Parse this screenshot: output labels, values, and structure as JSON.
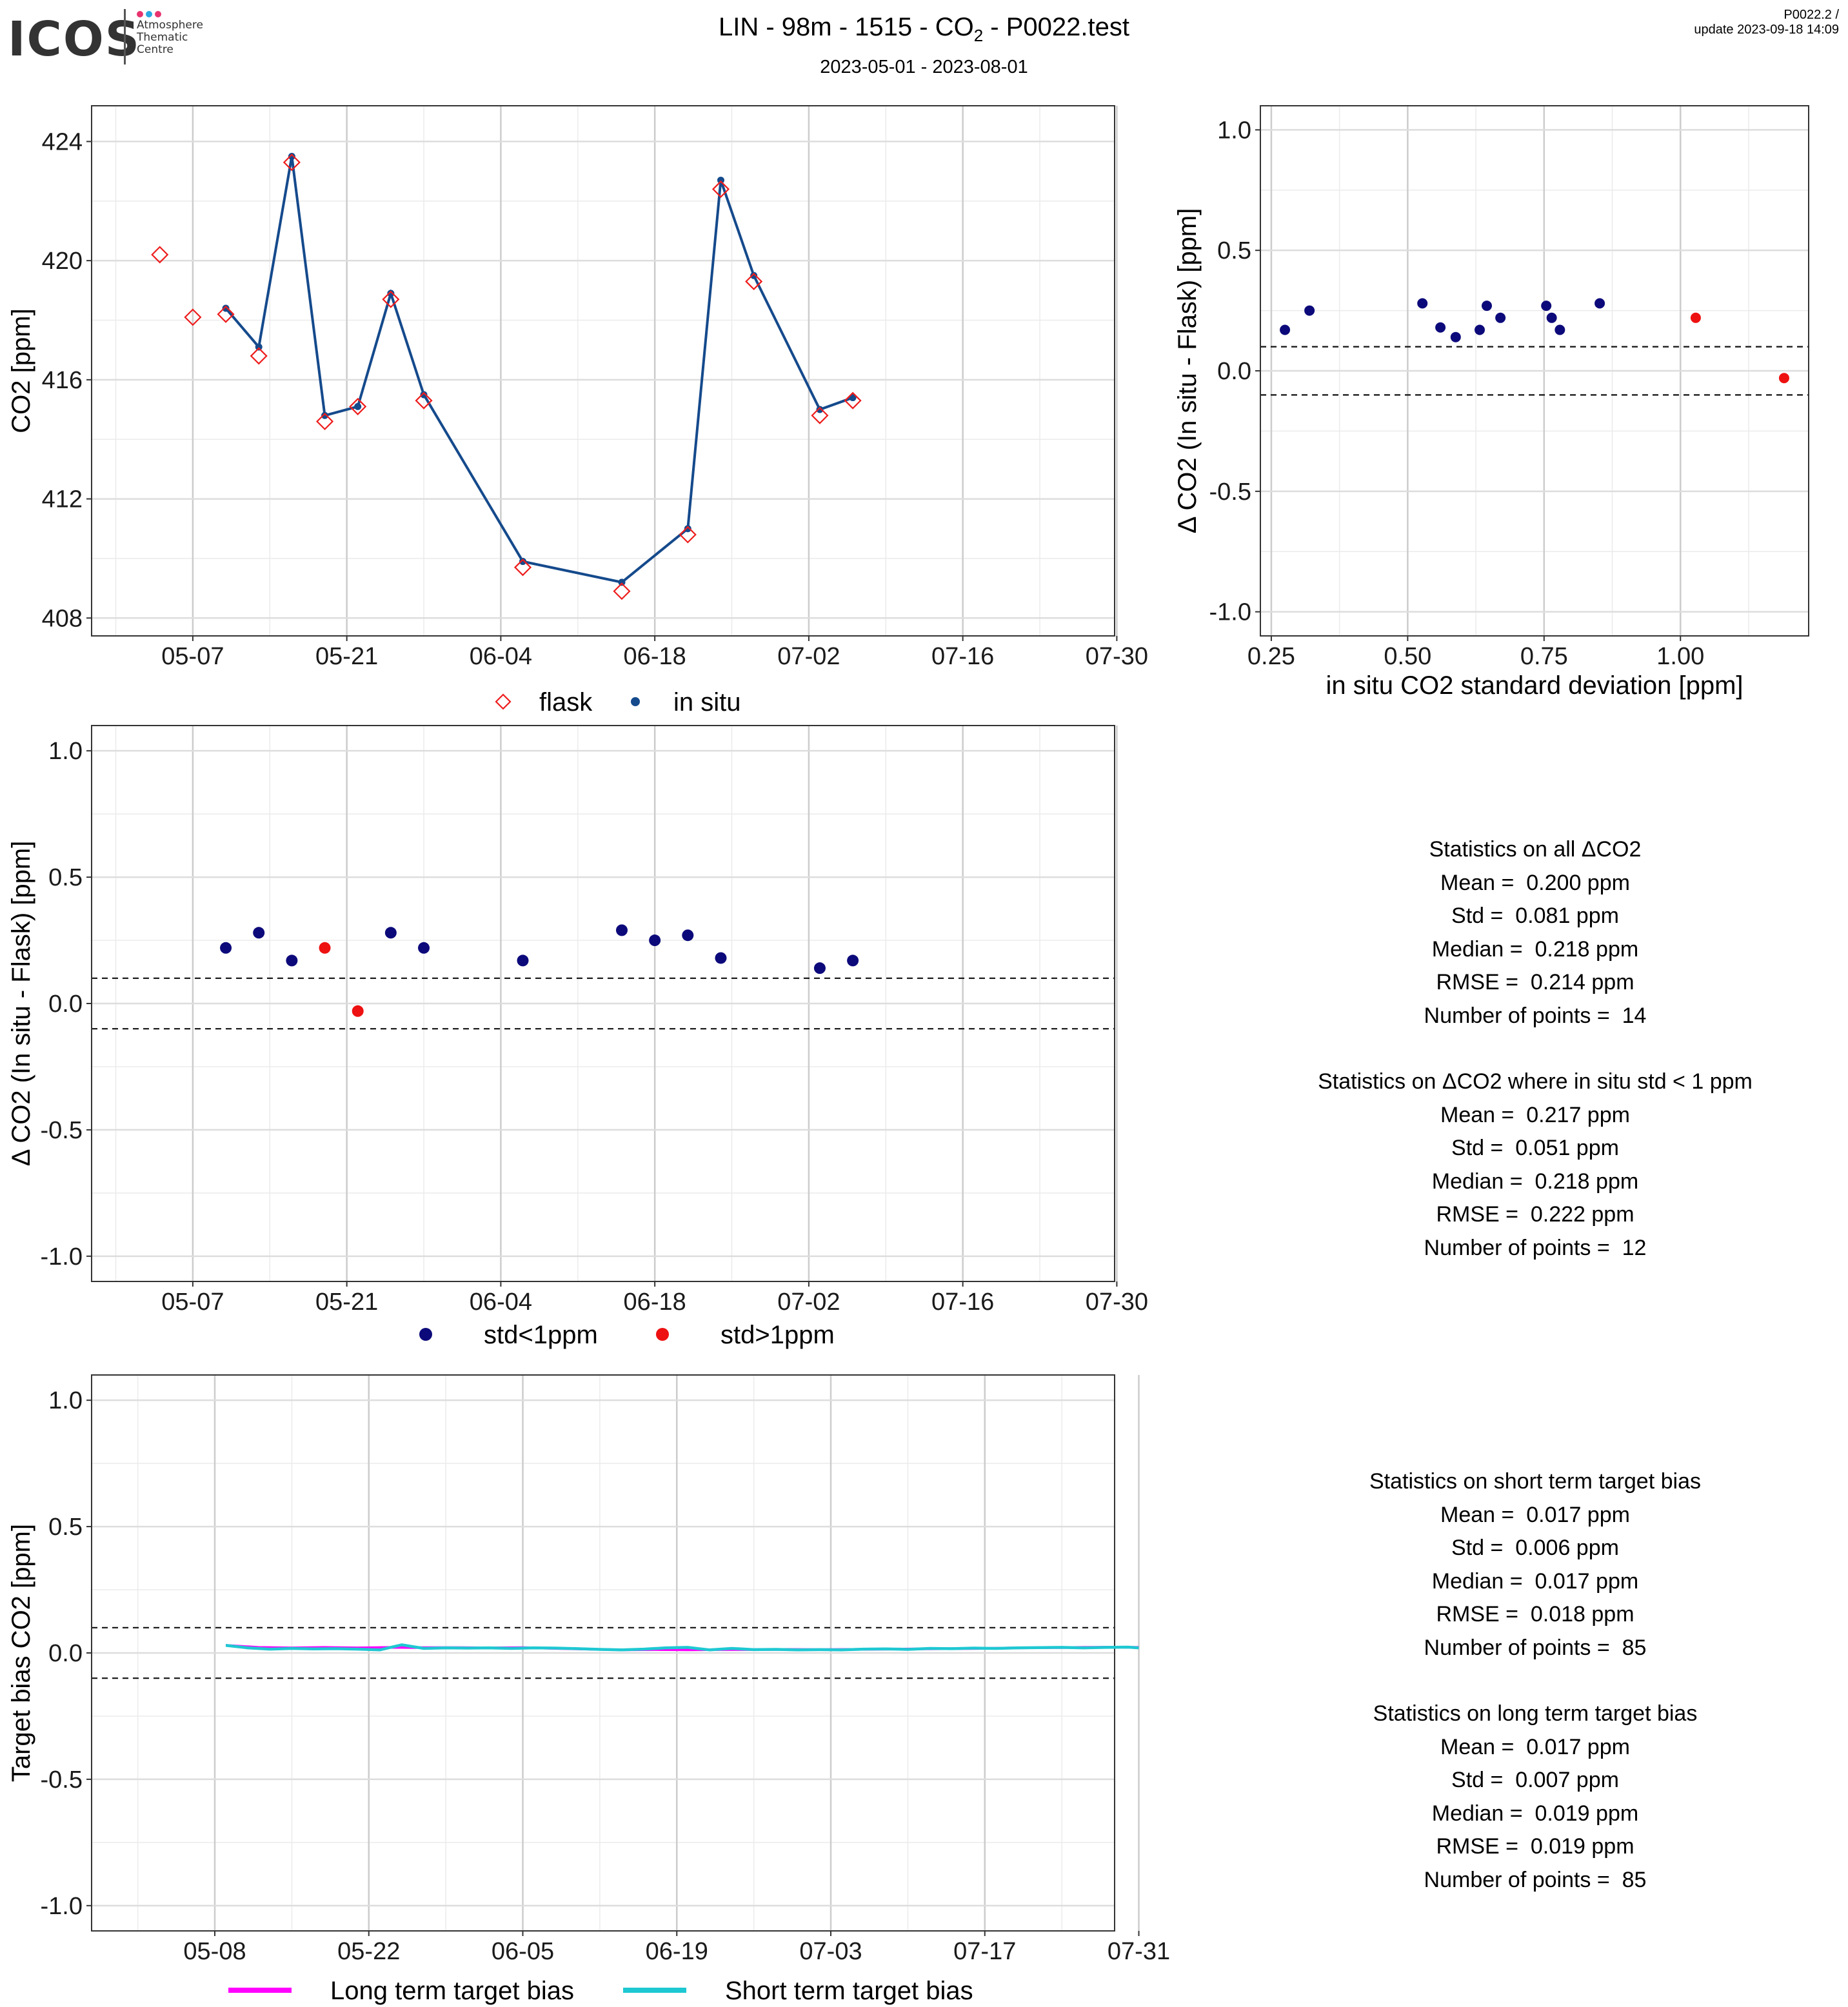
{
  "header": {
    "logo": "ICOS",
    "logo_sub": "Atmosphere\nThematic\nCentre",
    "title_pre": "LIN - 98m - 1515 - CO",
    "title_sub": "2",
    "title_post": " - P0022.test",
    "subtitle": "2023-05-01 - 2023-08-01",
    "version_line1": "P0022.2 /",
    "version_line2": "update  2023-09-18 14:09"
  },
  "colors": {
    "flask": "#ee1c1c",
    "in_situ": "#154a8c",
    "std_lt_1": "#0c0a7a",
    "std_gt_1": "#ee1111",
    "long_term": "#ff00ff",
    "short_term": "#1ec8d2"
  },
  "chart_data": [
    {
      "id": "timeseries",
      "type": "line",
      "ylabel": "CO2 [ppm]",
      "ylim": [
        407.4,
        425.2
      ],
      "yticks": [
        "408",
        "412",
        "416",
        "420",
        "424"
      ],
      "ytick_values": [
        408,
        412,
        416,
        420,
        424
      ],
      "xlim_days": [
        -3.2,
        89.8
      ],
      "xtick_days": [
        6,
        20,
        34,
        48,
        62,
        76,
        90
      ],
      "xticks": [
        "05-07",
        "05-21",
        "06-04",
        "06-18",
        "07-02",
        "07-16",
        "07-30"
      ],
      "grid": true,
      "legend_position": "bottom",
      "series": [
        {
          "name": "flask",
          "marker": "diamond-open",
          "x": [
            "2023-05-04",
            "2023-05-07",
            "2023-05-10",
            "2023-05-13",
            "2023-05-16",
            "2023-05-19",
            "2023-05-22",
            "2023-05-25",
            "2023-05-28",
            "2023-06-06",
            "2023-06-15",
            "2023-06-21",
            "2023-06-24",
            "2023-06-27",
            "2023-07-03",
            "2023-07-06"
          ],
          "y": [
            420.2,
            418.1,
            418.2,
            416.8,
            423.3,
            414.6,
            415.1,
            418.7,
            415.3,
            409.7,
            408.9,
            410.8,
            422.4,
            419.3,
            414.8,
            415.3
          ]
        },
        {
          "name": "in situ",
          "marker": "dot-line",
          "x": [
            "2023-05-10",
            "2023-05-13",
            "2023-05-16",
            "2023-05-19",
            "2023-05-22",
            "2023-05-25",
            "2023-05-28",
            "2023-06-06",
            "2023-06-15",
            "2023-06-21",
            "2023-06-24",
            "2023-06-27",
            "2023-07-03",
            "2023-07-06"
          ],
          "y": [
            418.4,
            417.1,
            423.5,
            414.8,
            415.1,
            418.9,
            415.5,
            409.9,
            409.2,
            411.0,
            422.7,
            419.5,
            415.0,
            415.4
          ]
        }
      ]
    },
    {
      "id": "delta_vs_std",
      "type": "scatter",
      "xlabel": "in situ CO2 standard deviation [ppm]",
      "ylabel": "Δ CO2 (In situ - Flask) [ppm]",
      "xlim": [
        0.23,
        1.235
      ],
      "ylim": [
        -1.1,
        1.1
      ],
      "xticks": [
        "0.25",
        "0.50",
        "0.75",
        "1.00"
      ],
      "xtick_values": [
        0.25,
        0.5,
        0.75,
        1.0
      ],
      "yticks": [
        "-1.0",
        "-0.5",
        "0.0",
        "0.5",
        "1.0"
      ],
      "ytick_values": [
        -1.0,
        -0.5,
        0.0,
        0.5,
        1.0
      ],
      "hlines": [
        0.1,
        -0.1
      ],
      "grid": true,
      "series": [
        {
          "name": "std<1ppm",
          "x": [
            0.275,
            0.32,
            0.527,
            0.56,
            0.588,
            0.632,
            0.645,
            0.67,
            0.754,
            0.764,
            0.779,
            0.852
          ],
          "y": [
            0.17,
            0.25,
            0.28,
            0.18,
            0.14,
            0.17,
            0.27,
            0.22,
            0.27,
            0.22,
            0.17,
            0.28
          ]
        },
        {
          "name": "std>1ppm",
          "x": [
            1.028,
            1.19
          ],
          "y": [
            0.22,
            -0.03
          ]
        }
      ]
    },
    {
      "id": "delta_timeseries",
      "type": "scatter",
      "ylabel": "Δ CO2 (In situ - Flask) [ppm]",
      "ylim": [
        -1.1,
        1.1
      ],
      "yticks": [
        "-1.0",
        "-0.5",
        "0.0",
        "0.5",
        "1.0"
      ],
      "ytick_values": [
        -1.0,
        -0.5,
        0.0,
        0.5,
        1.0
      ],
      "xlim_days": [
        -3.2,
        89.8
      ],
      "xtick_days": [
        6,
        20,
        34,
        48,
        62,
        76,
        90
      ],
      "xticks": [
        "05-07",
        "05-21",
        "06-04",
        "06-18",
        "07-02",
        "07-16",
        "07-30"
      ],
      "hlines": [
        0.1,
        -0.1
      ],
      "grid": true,
      "legend_position": "bottom",
      "series": [
        {
          "name": "std<1ppm",
          "x": [
            "2023-05-10",
            "2023-05-13",
            "2023-05-16",
            "2023-05-25",
            "2023-05-28",
            "2023-06-06",
            "2023-06-15",
            "2023-06-18",
            "2023-06-21",
            "2023-06-24",
            "2023-07-03",
            "2023-07-06"
          ],
          "y": [
            0.22,
            0.28,
            0.17,
            0.28,
            0.22,
            0.17,
            0.29,
            0.25,
            0.27,
            0.18,
            0.14,
            0.17
          ]
        },
        {
          "name": "std>1ppm",
          "x": [
            "2023-05-19",
            "2023-05-22"
          ],
          "y": [
            0.22,
            -0.03
          ]
        }
      ]
    },
    {
      "id": "target_bias",
      "type": "line",
      "ylabel": "Target bias CO2 [ppm]",
      "ylim": [
        -1.1,
        1.1
      ],
      "yticks": [
        "-1.0",
        "-0.5",
        "0.0",
        "0.5",
        "1.0"
      ],
      "ytick_values": [
        -1.0,
        -0.5,
        0.0,
        0.5,
        1.0
      ],
      "xlim_days": [
        -4.2,
        88.8
      ],
      "xtick_days": [
        7,
        21,
        35,
        49,
        63,
        77,
        91
      ],
      "xticks": [
        "05-08",
        "05-22",
        "06-05",
        "06-19",
        "07-03",
        "07-17",
        "07-31"
      ],
      "hlines": [
        0.1,
        -0.1
      ],
      "grid": true,
      "legend_position": "bottom",
      "series": [
        {
          "name": "Long term target bias",
          "x": [
            "2023-05-09",
            "2023-05-12",
            "2023-05-15",
            "2023-05-18",
            "2023-05-21",
            "2023-05-24",
            "2023-05-27",
            "2023-05-30",
            "2023-06-02",
            "2023-06-05",
            "2023-06-08",
            "2023-06-11",
            "2023-06-14",
            "2023-06-17",
            "2023-06-20",
            "2023-06-23",
            "2023-06-26",
            "2023-06-29",
            "2023-07-02",
            "2023-07-05",
            "2023-07-08",
            "2023-07-11",
            "2023-07-14",
            "2023-07-17",
            "2023-07-20",
            "2023-07-23",
            "2023-07-26",
            "2023-07-29",
            "2023-07-31"
          ],
          "y": [
            0.03,
            0.022,
            0.02,
            0.022,
            0.02,
            0.022,
            0.021,
            0.021,
            0.02,
            0.021,
            0.018,
            0.015,
            0.012,
            0.013,
            0.012,
            0.013,
            0.013,
            0.014,
            0.013,
            0.014,
            0.015,
            0.016,
            0.017,
            0.018,
            0.02,
            0.021,
            0.022,
            0.023,
            0.022
          ]
        },
        {
          "name": "Short term target bias",
          "x": [
            "2023-05-09",
            "2023-05-11",
            "2023-05-13",
            "2023-05-15",
            "2023-05-17",
            "2023-05-19",
            "2023-05-21",
            "2023-05-23",
            "2023-05-25",
            "2023-05-27",
            "2023-05-29",
            "2023-05-31",
            "2023-06-02",
            "2023-06-04",
            "2023-06-06",
            "2023-06-08",
            "2023-06-10",
            "2023-06-12",
            "2023-06-14",
            "2023-06-16",
            "2023-06-18",
            "2023-06-20",
            "2023-06-22",
            "2023-06-24",
            "2023-06-26",
            "2023-06-28",
            "2023-06-30",
            "2023-07-02",
            "2023-07-04",
            "2023-07-06",
            "2023-07-08",
            "2023-07-10",
            "2023-07-12",
            "2023-07-14",
            "2023-07-16",
            "2023-07-18",
            "2023-07-20",
            "2023-07-22",
            "2023-07-24",
            "2023-07-26",
            "2023-07-28",
            "2023-07-30",
            "2023-07-31"
          ],
          "y": [
            0.03,
            0.02,
            0.015,
            0.018,
            0.016,
            0.017,
            0.015,
            0.012,
            0.032,
            0.018,
            0.02,
            0.019,
            0.02,
            0.018,
            0.02,
            0.019,
            0.017,
            0.014,
            0.012,
            0.015,
            0.02,
            0.022,
            0.012,
            0.018,
            0.013,
            0.014,
            0.012,
            0.013,
            0.012,
            0.015,
            0.016,
            0.014,
            0.018,
            0.017,
            0.019,
            0.018,
            0.02,
            0.021,
            0.022,
            0.02,
            0.022,
            0.023,
            0.02
          ]
        }
      ]
    }
  ],
  "stats_delta": [
    "Statistics on all ΔCO2",
    "Mean =  0.200 ppm",
    "Std =  0.081 ppm",
    "Median =  0.218 ppm",
    "RMSE =  0.214 ppm",
    "Number of points =  14",
    "",
    "Statistics on ΔCO2 where in situ std < 1 ppm",
    "Mean =  0.217 ppm",
    "Std =  0.051 ppm",
    "Median =  0.218 ppm",
    "RMSE =  0.222 ppm",
    "Number of points =  12"
  ],
  "stats_bias": [
    "Statistics on short term target bias",
    "Mean =  0.017 ppm",
    "Std =  0.006 ppm",
    "Median =  0.017 ppm",
    "RMSE =  0.018 ppm",
    "Number of points =  85",
    "",
    "Statistics on long term target bias",
    "Mean =  0.017 ppm",
    "Std =  0.007 ppm",
    "Median =  0.019 ppm",
    "RMSE =  0.019 ppm",
    "Number of points =  85"
  ]
}
